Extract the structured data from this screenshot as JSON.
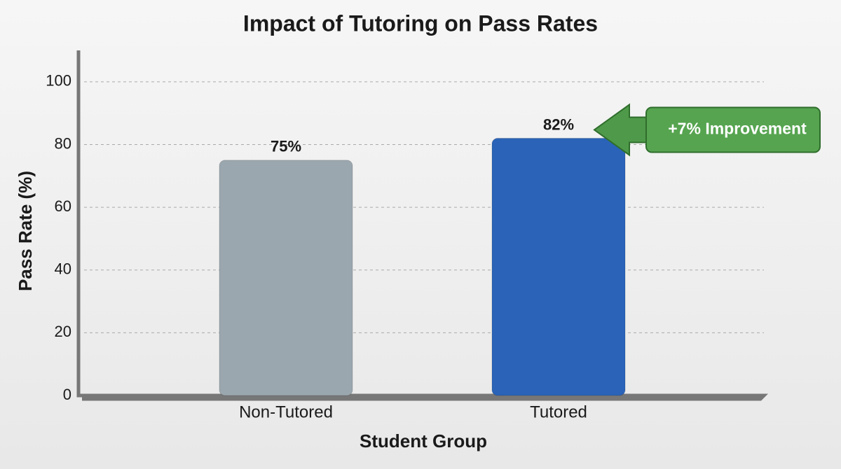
{
  "chart_data": {
    "type": "bar",
    "title": "Impact of Tutoring on Pass Rates",
    "x_label": "Student Group",
    "y_label": "Pass Rate (%)",
    "categories": [
      "Non-Tutored",
      "Tutored"
    ],
    "values": [
      75,
      82
    ],
    "value_labels": [
      "75%",
      "82%"
    ],
    "colors": [
      "#9ba7af",
      "#2a63b8"
    ],
    "ylim": [
      0,
      110
    ],
    "yticks": [
      0,
      20,
      40,
      60,
      80,
      100
    ],
    "grid": true,
    "annotation": "+7% Improvement"
  }
}
